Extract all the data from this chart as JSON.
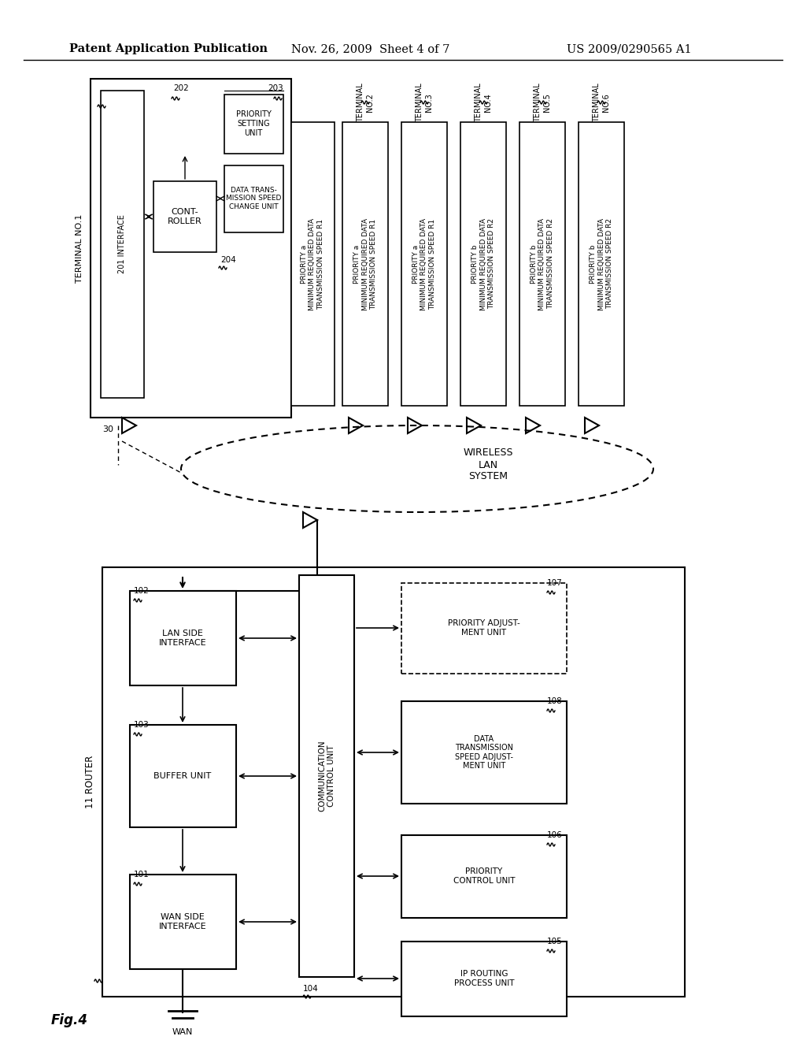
{
  "title_left": "Patent Application Publication",
  "title_mid": "Nov. 26, 2009  Sheet 4 of 7",
  "title_right": "US 2009/0290565 A1",
  "fig_label": "Fig.4",
  "background": "#ffffff"
}
